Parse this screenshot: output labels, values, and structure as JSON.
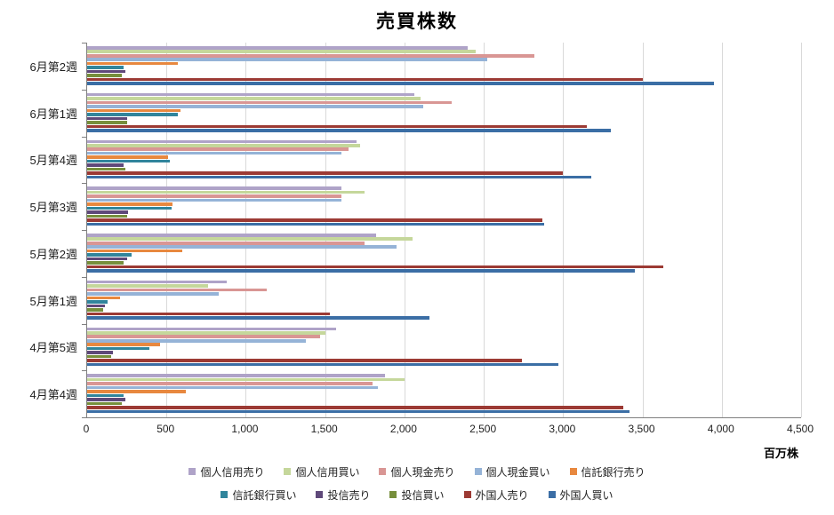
{
  "chart_data": {
    "type": "bar",
    "orientation": "horizontal",
    "title": "売買株数",
    "xlabel": "百万株",
    "xlim": [
      0,
      4500
    ],
    "xticks": [
      0,
      500,
      1000,
      1500,
      2000,
      2500,
      3000,
      3500,
      4000,
      4500
    ],
    "xtick_labels": [
      "0",
      "500",
      "1,000",
      "1,500",
      "2,000",
      "2,500",
      "3,000",
      "3,500",
      "4,000",
      "4,500"
    ],
    "grid": true,
    "legend_position": "bottom",
    "legend_rows": 2,
    "categories": [
      "6月第2週",
      "6月第1週",
      "5月第4週",
      "5月第3週",
      "5月第2週",
      "5月第1週",
      "4月第5週",
      "4月第4週"
    ],
    "series": [
      {
        "name": "個人信用売り",
        "color": "#AFA3C8",
        "values": [
          2400,
          2060,
          1700,
          1600,
          1820,
          880,
          1570,
          1880
        ]
      },
      {
        "name": "個人信用買い",
        "color": "#C5D79B",
        "values": [
          2450,
          2100,
          1720,
          1750,
          2050,
          760,
          1500,
          2000
        ]
      },
      {
        "name": "個人現金売り",
        "color": "#D99694",
        "values": [
          2820,
          2300,
          1650,
          1600,
          1750,
          1130,
          1470,
          1800
        ]
      },
      {
        "name": "個人現金買い",
        "color": "#95B3D7",
        "values": [
          2520,
          2120,
          1600,
          1600,
          1950,
          830,
          1380,
          1830
        ]
      },
      {
        "name": "信託銀行売り",
        "color": "#E8883F",
        "values": [
          570,
          590,
          510,
          540,
          600,
          210,
          460,
          620
        ]
      },
      {
        "name": "信託銀行買い",
        "color": "#31859C",
        "values": [
          230,
          570,
          520,
          530,
          280,
          130,
          390,
          230
        ]
      },
      {
        "name": "投信売り",
        "color": "#5F497A",
        "values": [
          240,
          250,
          230,
          260,
          250,
          110,
          160,
          240
        ]
      },
      {
        "name": "投信買い",
        "color": "#778F3C",
        "values": [
          220,
          250,
          240,
          250,
          230,
          100,
          150,
          220
        ]
      },
      {
        "name": "外国人売り",
        "color": "#9C3A34",
        "values": [
          3500,
          3150,
          3000,
          2870,
          3630,
          1530,
          2740,
          3380
        ]
      },
      {
        "name": "外国人買い",
        "color": "#3B6EA5",
        "values": [
          3950,
          3300,
          3180,
          2880,
          3450,
          2160,
          2970,
          3420
        ]
      }
    ]
  }
}
